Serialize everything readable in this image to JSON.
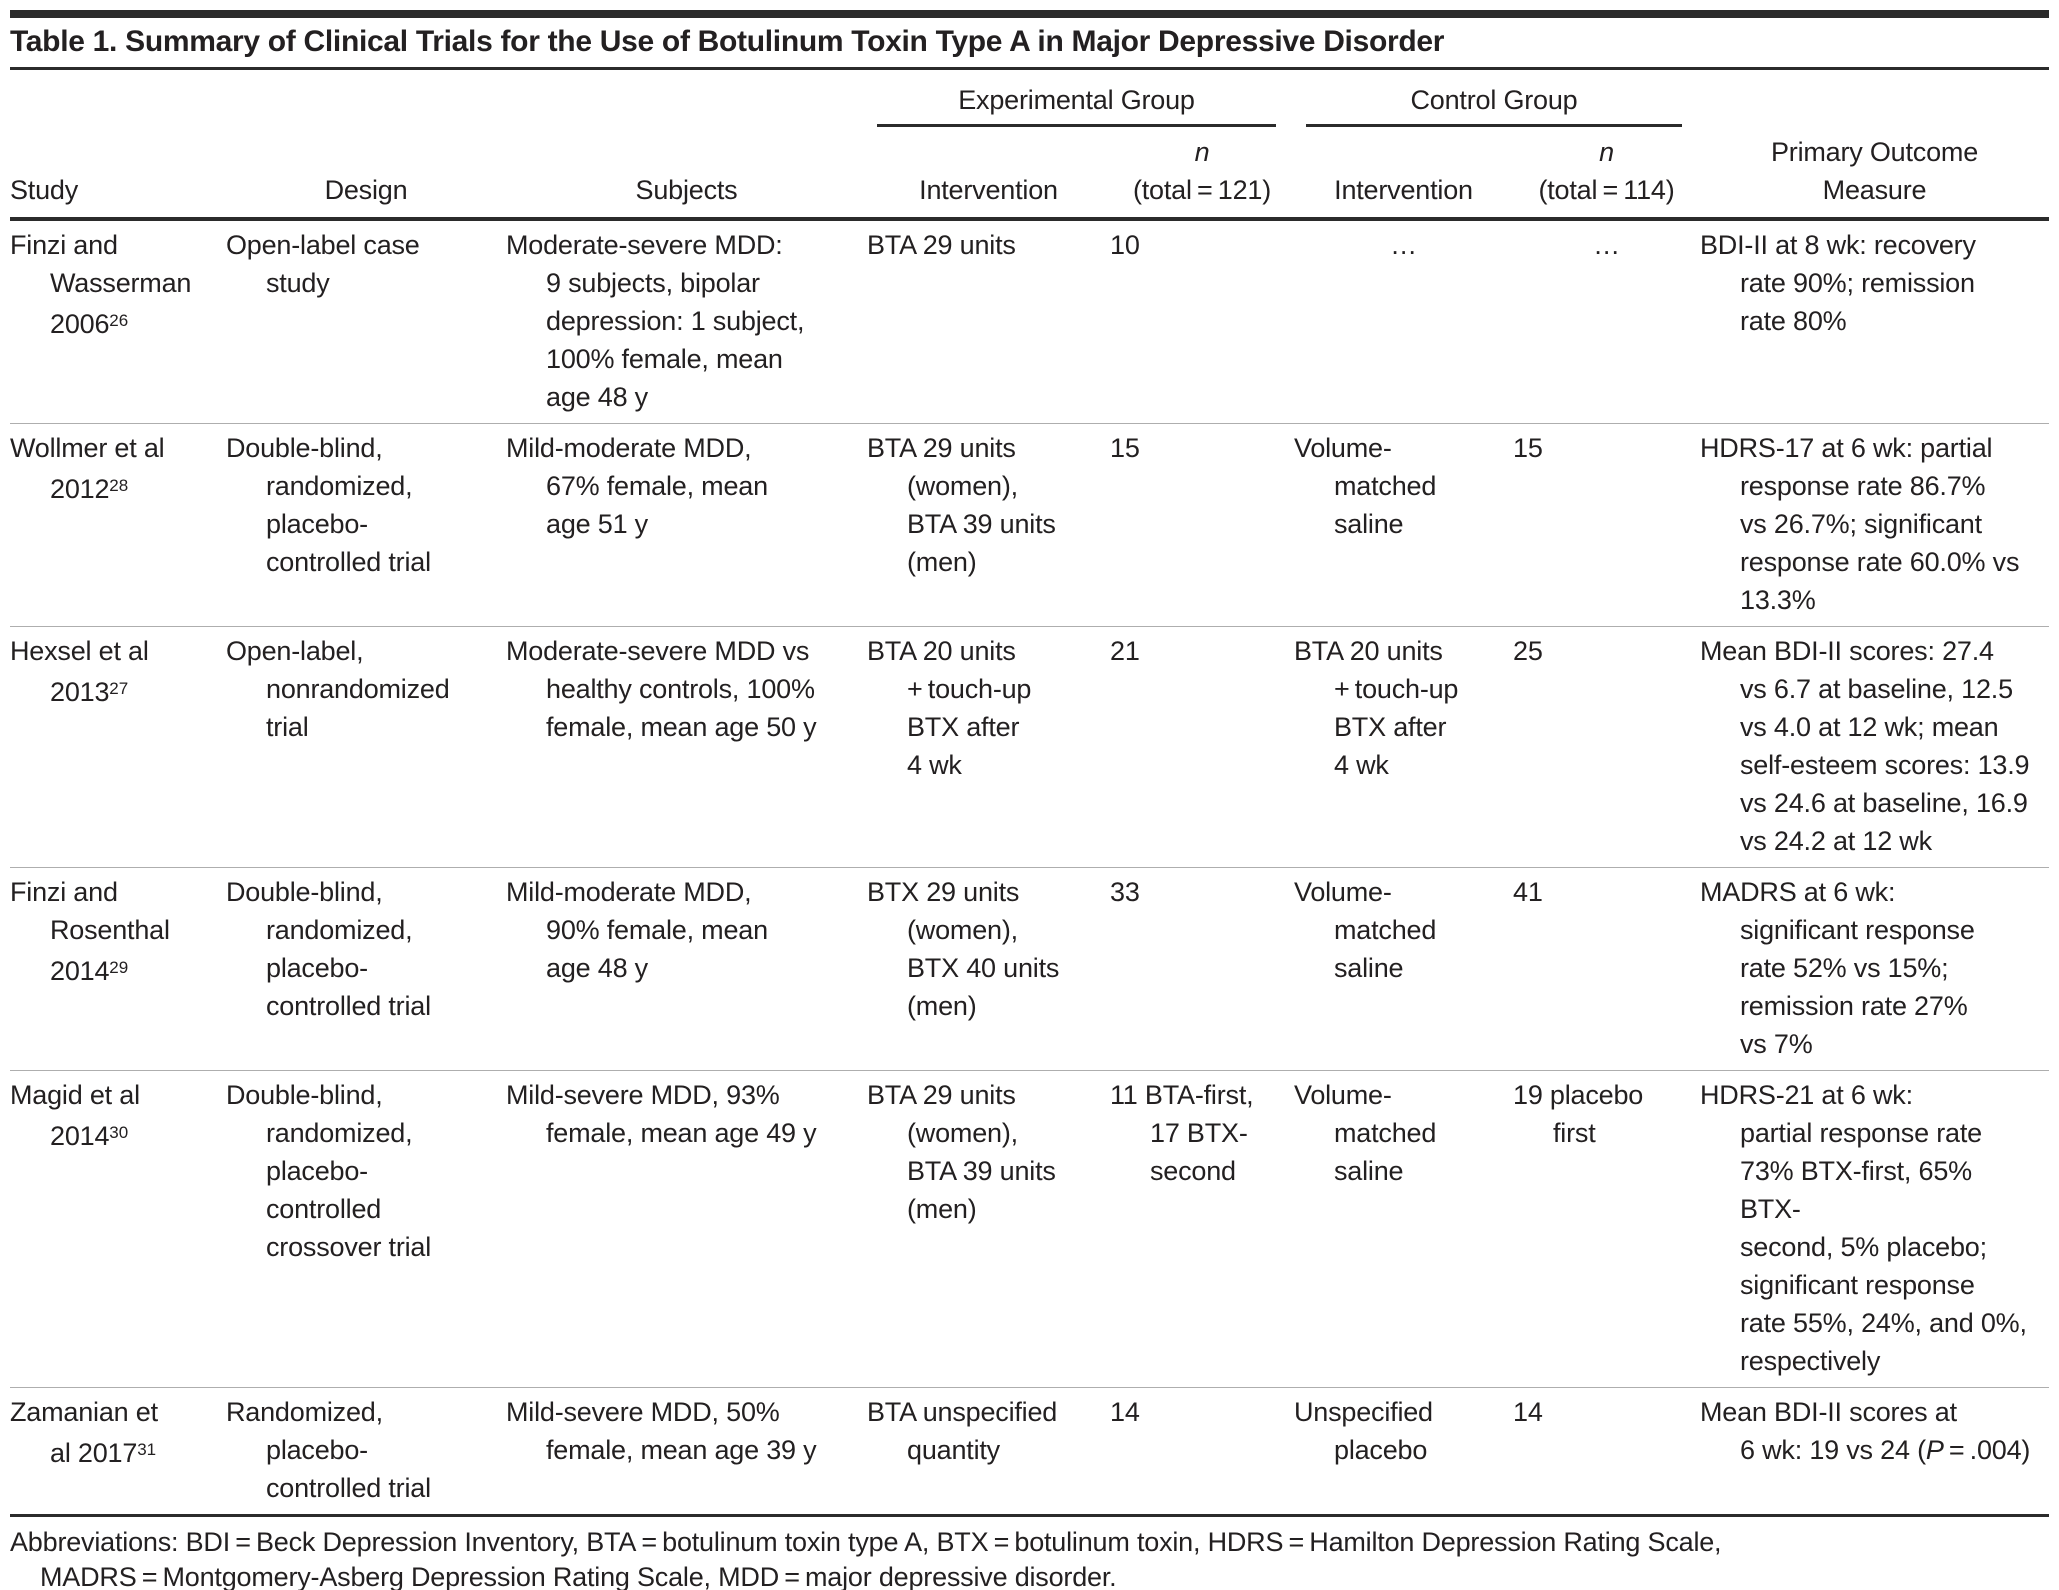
{
  "title": "Table 1. Summary of Clinical Trials for the Use of Botulinum Toxin Type A in Major Depressive Disorder",
  "header": {
    "experimental_group": "Experimental Group",
    "control_group": "Control Group",
    "study": "Study",
    "design": "Design",
    "subjects": "Subjects",
    "intervention_exp": "Intervention",
    "n_exp_symbol": "n",
    "n_exp_total": "(total = 121)",
    "intervention_ctrl": "Intervention",
    "n_ctrl_symbol": "n",
    "n_ctrl_total": "(total = 114)",
    "primary_outcome": "Primary Outcome\nMeasure"
  },
  "rows": [
    {
      "study": "Finzi and\nWasserman\n2006",
      "study_sup": "26",
      "design": "Open-label case\nstudy",
      "subjects": "Moderate-severe MDD:\n9 subjects, bipolar\ndepression: 1 subject,\n100% female, mean\nage 48 y",
      "exp_intervention": "BTA 29 units",
      "exp_n": "10",
      "ctrl_intervention": "…",
      "ctrl_n": "…",
      "outcome": "BDI-II at 8 wk: recovery\nrate 90%; remission\nrate 80%"
    },
    {
      "study": "Wollmer et al\n2012",
      "study_sup": "28",
      "design": "Double-blind,\nrandomized,\nplacebo-\ncontrolled trial",
      "subjects": "Mild-moderate MDD,\n67% female, mean\nage 51 y",
      "exp_intervention": "BTA 29 units\n(women),\nBTA 39 units\n(men)",
      "exp_n": "15",
      "ctrl_intervention": "Volume-\nmatched\nsaline",
      "ctrl_n": "15",
      "outcome": "HDRS-17 at 6 wk: partial\nresponse rate 86.7%\nvs 26.7%; significant\nresponse rate 60.0% vs\n13.3%"
    },
    {
      "study": "Hexsel et al\n2013",
      "study_sup": "27",
      "design": "Open-label,\nnonrandomized\ntrial",
      "subjects": "Moderate-severe MDD vs\nhealthy controls, 100%\nfemale, mean age 50 y",
      "exp_intervention": "BTA 20 units\n+ touch-up\nBTX after\n4 wk",
      "exp_n": "21",
      "ctrl_intervention": "BTA 20 units\n+ touch-up\nBTX after\n4 wk",
      "ctrl_n": "25",
      "outcome": "Mean BDI-II scores: 27.4\nvs 6.7 at baseline, 12.5\nvs 4.0 at 12 wk; mean\nself-esteem scores: 13.9\nvs 24.6 at baseline, 16.9\nvs 24.2 at 12 wk"
    },
    {
      "study": "Finzi and\nRosenthal\n2014",
      "study_sup": "29",
      "design": "Double-blind,\nrandomized,\nplacebo-\ncontrolled trial",
      "subjects": "Mild-moderate MDD,\n90% female, mean\nage 48 y",
      "exp_intervention": "BTX 29 units\n(women),\nBTX 40 units\n(men)",
      "exp_n": "33",
      "ctrl_intervention": "Volume-\nmatched\nsaline",
      "ctrl_n": "41",
      "outcome": "MADRS at 6 wk:\nsignificant response\nrate 52% vs 15%;\nremission rate 27%\nvs 7%"
    },
    {
      "study": "Magid et al\n2014",
      "study_sup": "30",
      "design": "Double-blind,\nrandomized,\nplacebo-\ncontrolled\ncrossover trial",
      "subjects": "Mild-severe MDD, 93%\nfemale, mean age 49 y",
      "exp_intervention": "BTA 29 units\n(women),\nBTA 39 units\n(men)",
      "exp_n": "11 BTA-first,\n17 BTX-\nsecond",
      "ctrl_intervention": "Volume-\nmatched\nsaline",
      "ctrl_n": "19 placebo\nfirst",
      "outcome": "HDRS-21 at 6 wk:\npartial response rate\n73% BTX-first, 65% BTX-\nsecond, 5% placebo;\nsignificant response\nrate 55%, 24%, and 0%,\nrespectively"
    },
    {
      "study": "Zamanian et\nal  2017",
      "study_sup": "31",
      "design": "Randomized,\nplacebo-\ncontrolled trial",
      "subjects": "Mild-severe MDD, 50%\nfemale, mean age 39 y",
      "exp_intervention": "BTA unspecified\nquantity",
      "exp_n": "14",
      "ctrl_intervention": "Unspecified\nplacebo",
      "ctrl_n": "14",
      "outcome_pre": "Mean BDI-II scores at\n6 wk: 19 vs 24 (",
      "outcome_italic": "P",
      "outcome_post": " = .004)"
    }
  ],
  "footnote": {
    "line1": "Abbreviations: BDI = Beck Depression Inventory, BTA = botulinum toxin type A, BTX = botulinum toxin, HDRS = Hamilton Depression Rating Scale,",
    "line2": "MADRS = Montgomery-Asberg Depression Rating Scale, MDD = major depressive disorder."
  }
}
